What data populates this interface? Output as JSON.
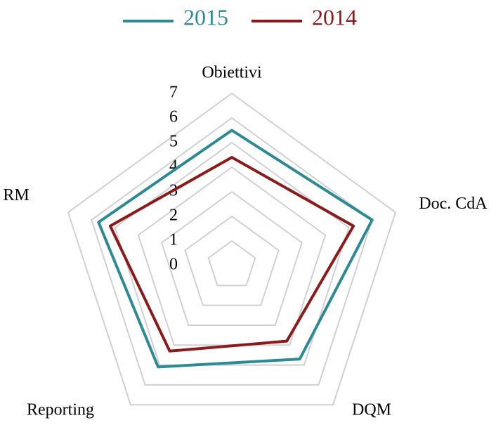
{
  "chart_data": {
    "type": "radar",
    "categories": [
      "Obiettivi",
      "Doc. CdA",
      "DQM",
      "Reporting",
      "RM"
    ],
    "series": [
      {
        "name": "2015",
        "color": "#2e8a92",
        "values": [
          5.5,
          6.0,
          4.7,
          5.1,
          5.7
        ]
      },
      {
        "name": "2014",
        "color": "#8b1a1a",
        "values": [
          4.4,
          5.2,
          3.8,
          4.3,
          5.2
        ]
      }
    ],
    "rlim": [
      0,
      7
    ],
    "rticks": [
      0,
      1,
      2,
      3,
      4,
      5,
      6,
      7
    ],
    "grid": true,
    "legend": "top"
  }
}
